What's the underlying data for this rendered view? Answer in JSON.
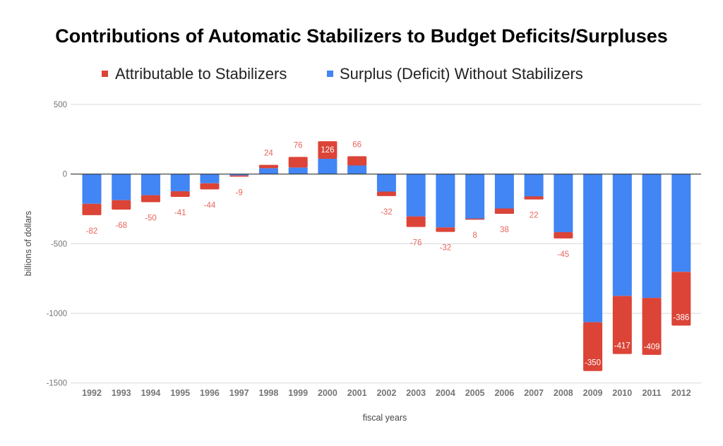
{
  "chart_data": {
    "type": "bar",
    "stacked": true,
    "title": "Contributions of Automatic Stabilizers to Budget Deficits/Surpluses",
    "xlabel": "fiscal years",
    "ylabel": "billions of dollars",
    "ylim": [
      -1500,
      500
    ],
    "yticks": [
      500,
      0,
      -500,
      -1000,
      -1500
    ],
    "grid": true,
    "legend_position": "top",
    "categories": [
      "1992",
      "1993",
      "1994",
      "1995",
      "1996",
      "1997",
      "1998",
      "1999",
      "2000",
      "2001",
      "2002",
      "2003",
      "2004",
      "2005",
      "2006",
      "2007",
      "2008",
      "2009",
      "2010",
      "2011",
      "2012"
    ],
    "series": [
      {
        "name": "Surplus (Deficit) Without Stabilizers",
        "color": "#4285F4",
        "values": [
          -213,
          -187,
          -152,
          -123,
          -66,
          -10,
          42,
          47,
          110,
          62,
          -126,
          -304,
          -383,
          -327,
          -285,
          -182,
          -417,
          -1064,
          -875,
          -889,
          -702
        ],
        "show_labels": false
      },
      {
        "name": "Attributable to Stabilizers",
        "color": "#DB4437",
        "values": [
          -82,
          -68,
          -50,
          -41,
          -44,
          -9,
          24,
          76,
          126,
          66,
          -32,
          -76,
          -32,
          8,
          38,
          22,
          -45,
          -350,
          -417,
          -409,
          -386
        ],
        "show_labels": true
      }
    ],
    "legend": [
      {
        "name": "Attributable to Stabilizers",
        "color": "#DB4437"
      },
      {
        "name": "Surplus (Deficit) Without Stabilizers",
        "color": "#4285F4"
      }
    ],
    "label_color": "#E8665C",
    "inside_label_color": "#FFFFFF"
  }
}
